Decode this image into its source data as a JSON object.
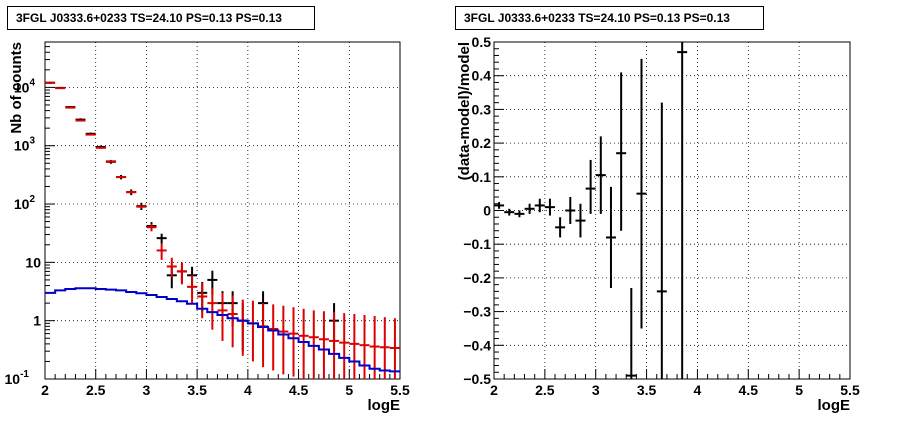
{
  "chart_data": [
    {
      "type": "line",
      "title": "3FGL J0333.6+0233 TS=24.10 PS=0.13 PS=0.13",
      "xlabel": "logE",
      "ylabel": "Nb of counts",
      "xlim": [
        2,
        5.5
      ],
      "ylim": [
        0.1,
        60000
      ],
      "yscale": "log",
      "grid": true,
      "x_ticks": [
        "2",
        "2.5",
        "3",
        "3.5",
        "4",
        "4.5",
        "5",
        "5.5"
      ],
      "y_ticks": [
        {
          "value": 0.1,
          "label": "10",
          "sup": "-1"
        },
        {
          "value": 1,
          "label": "1",
          "sup": ""
        },
        {
          "value": 10,
          "label": "10",
          "sup": ""
        },
        {
          "value": 100,
          "label": "10",
          "sup": "2"
        },
        {
          "value": 1000,
          "label": "10",
          "sup": "3"
        },
        {
          "value": 10000,
          "label": "10",
          "sup": "4"
        }
      ],
      "series": [
        {
          "color": "#000000",
          "points": [
            [
              2.05,
              12000,
              11500,
              12500
            ],
            [
              2.15,
              9800,
              9400,
              10200
            ],
            [
              2.25,
              4600,
              4400,
              4800
            ],
            [
              2.35,
              2800,
              2650,
              2950
            ],
            [
              2.45,
              1600,
              1520,
              1680
            ],
            [
              2.55,
              950,
              890,
              1010
            ],
            [
              2.65,
              530,
              490,
              570
            ],
            [
              2.75,
              290,
              265,
              315
            ],
            [
              2.85,
              160,
              142,
              178
            ],
            [
              2.95,
              92,
              79,
              105
            ],
            [
              3.05,
              42,
              35,
              49
            ],
            [
              3.15,
              26,
              21,
              31
            ],
            [
              3.25,
              6,
              3.6,
              8.4
            ],
            [
              3.35,
              7,
              4.5,
              9.5
            ],
            [
              3.45,
              6,
              3.6,
              8.4
            ],
            [
              3.55,
              3,
              1.4,
              4.6
            ],
            [
              3.65,
              5,
              2.8,
              7.2
            ],
            [
              3.75,
              2,
              0.8,
              3.2
            ],
            [
              3.85,
              2,
              0.8,
              3.2
            ],
            [
              3.95,
              1,
              0.3,
              2.0
            ],
            [
              4.15,
              2,
              0.8,
              3.2
            ],
            [
              4.85,
              1,
              0.3,
              2.0
            ]
          ]
        },
        {
          "color": "#dd0000",
          "points": [
            [
              2.05,
              12000,
              11800,
              12200
            ],
            [
              2.15,
              9700,
              9550,
              9850
            ],
            [
              2.25,
              4500,
              4400,
              4600
            ],
            [
              2.35,
              2700,
              2620,
              2780
            ],
            [
              2.45,
              1550,
              1500,
              1600
            ],
            [
              2.55,
              920,
              890,
              950
            ],
            [
              2.65,
              540,
              520,
              560
            ],
            [
              2.75,
              290,
              278,
              302
            ],
            [
              2.85,
              160,
              152,
              168
            ],
            [
              2.95,
              90,
              84,
              96
            ],
            [
              3.05,
              40,
              34,
              46
            ],
            [
              3.15,
              16,
              11,
              21
            ],
            [
              3.25,
              8.5,
              5.5,
              12
            ],
            [
              3.35,
              7,
              4.2,
              10
            ],
            [
              3.45,
              3.8,
              1.9,
              6
            ],
            [
              3.55,
              2.6,
              1.1,
              4.5
            ],
            [
              3.65,
              2.0,
              0.7,
              3.6
            ],
            [
              3.75,
              1.5,
              0.45,
              3.0
            ],
            [
              3.85,
              1.3,
              0.35,
              2.7
            ],
            [
              3.95,
              1.0,
              0.25,
              2.3
            ],
            [
              4.05,
              0.9,
              0.2,
              2.2
            ],
            [
              4.15,
              0.8,
              0.16,
              2.0
            ],
            [
              4.25,
              0.72,
              0.14,
              1.9
            ],
            [
              4.35,
              0.65,
              0.12,
              1.8
            ],
            [
              4.45,
              0.6,
              0.11,
              1.7
            ],
            [
              4.55,
              0.55,
              0.1,
              1.6
            ],
            [
              4.65,
              0.52,
              0.1,
              1.5
            ],
            [
              4.75,
              0.48,
              0.1,
              1.45
            ],
            [
              4.85,
              0.45,
              0.1,
              1.4
            ],
            [
              4.95,
              0.42,
              0.1,
              1.35
            ],
            [
              5.05,
              0.4,
              0.1,
              1.3
            ],
            [
              5.15,
              0.38,
              0.1,
              1.25
            ],
            [
              5.25,
              0.36,
              0.1,
              1.2
            ],
            [
              5.35,
              0.35,
              0.1,
              1.15
            ],
            [
              5.45,
              0.34,
              0.1,
              1.1
            ]
          ]
        },
        {
          "color": "#0000cc",
          "step": true,
          "edges": [
            2.0,
            2.1,
            2.2,
            2.3,
            2.4,
            2.5,
            2.6,
            2.7,
            2.8,
            2.9,
            3.0,
            3.1,
            3.2,
            3.3,
            3.4,
            3.5,
            3.6,
            3.7,
            3.8,
            3.9,
            4.0,
            4.1,
            4.2,
            4.3,
            4.4,
            4.5,
            4.6,
            4.7,
            4.8,
            4.9,
            5.0,
            5.1,
            5.2,
            5.3,
            5.4,
            5.5
          ],
          "values": [
            3.0,
            3.3,
            3.5,
            3.6,
            3.6,
            3.5,
            3.4,
            3.3,
            3.1,
            2.95,
            2.75,
            2.55,
            2.35,
            2.15,
            1.95,
            1.6,
            1.4,
            1.25,
            1.1,
            1.0,
            0.9,
            0.78,
            0.68,
            0.58,
            0.5,
            0.43,
            0.37,
            0.32,
            0.27,
            0.23,
            0.2,
            0.17,
            0.15,
            0.14,
            0.135
          ]
        }
      ]
    },
    {
      "type": "scatter",
      "title": "3FGL J0333.6+0233 TS=24.10 PS=0.13 PS=0.13",
      "xlabel": "logE",
      "ylabel": "(data-model)/model",
      "xlim": [
        2,
        5.5
      ],
      "ylim": [
        -0.5,
        0.5
      ],
      "grid": true,
      "x_ticks": [
        "2",
        "2.5",
        "3",
        "3.5",
        "4",
        "4.5",
        "5",
        "5.5"
      ],
      "y_ticks": [
        "0.5",
        "0.4",
        "0.3",
        "0.2",
        "0.1",
        "0",
        "-0.1",
        "-0.2",
        "-0.3",
        "-0.4",
        "-0.5"
      ],
      "series": [
        {
          "color": "#000000",
          "points": [
            [
              2.05,
              0.015,
              0.005,
              0.025
            ],
            [
              2.15,
              -0.005,
              -0.015,
              0.005
            ],
            [
              2.25,
              -0.01,
              -0.02,
              0.0
            ],
            [
              2.35,
              0.005,
              -0.01,
              0.02
            ],
            [
              2.45,
              0.015,
              -0.005,
              0.035
            ],
            [
              2.55,
              0.01,
              -0.015,
              0.035
            ],
            [
              2.65,
              -0.05,
              -0.08,
              -0.02
            ],
            [
              2.75,
              0.0,
              -0.04,
              0.04
            ],
            [
              2.85,
              -0.03,
              -0.08,
              0.02
            ],
            [
              2.95,
              0.065,
              -0.01,
              0.15
            ],
            [
              3.05,
              0.105,
              -0.01,
              0.22
            ],
            [
              3.15,
              -0.08,
              -0.23,
              0.07
            ],
            [
              3.25,
              0.17,
              -0.06,
              0.41
            ],
            [
              3.35,
              -0.49,
              -0.5,
              -0.23
            ],
            [
              3.45,
              0.05,
              -0.35,
              0.45
            ],
            [
              3.65,
              -0.24,
              -0.5,
              0.32
            ],
            [
              3.85,
              0.47,
              -0.5,
              0.5
            ]
          ]
        }
      ]
    }
  ]
}
